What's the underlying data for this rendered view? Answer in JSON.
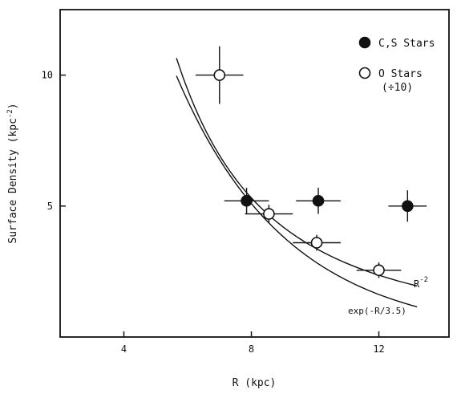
{
  "chart_data": {
    "type": "scatter",
    "xlabel": "R (kpc)",
    "ylabel": "Surface Density (kpc",
    "ylabel_sup": "-2",
    "ylabel_close": ")",
    "xlim": [
      2,
      14.2
    ],
    "ylim": [
      0,
      12.5
    ],
    "xticks": [
      4,
      8,
      12
    ],
    "yticks": [
      5,
      10
    ],
    "grid": false,
    "legend_position": "top-right",
    "series": [
      {
        "name": "C,S Stars",
        "marker": "filled-circle",
        "points": [
          {
            "x": 7.85,
            "y": 5.2,
            "xerr": 0.7,
            "yerr": 0.5
          },
          {
            "x": 10.1,
            "y": 5.2,
            "xerr": 0.7,
            "yerr": 0.5
          },
          {
            "x": 12.9,
            "y": 5.0,
            "xerr": 0.6,
            "yerr": 0.6
          }
        ]
      },
      {
        "name": "O Stars",
        "name_line2": "(÷10)",
        "marker": "open-circle",
        "points": [
          {
            "x": 7.0,
            "y": 10.0,
            "xerr": 0.75,
            "yerr": 1.1
          },
          {
            "x": 8.55,
            "y": 4.7,
            "xerr": 0.75,
            "yerr": 0.35
          },
          {
            "x": 10.05,
            "y": 3.6,
            "xerr": 0.75,
            "yerr": 0.3
          },
          {
            "x": 12.0,
            "y": 2.55,
            "xerr": 0.7,
            "yerr": 0.3
          }
        ]
      }
    ],
    "curves": [
      {
        "label": "R",
        "label_sup": "-2",
        "form": "power",
        "coef": 340,
        "x_range": [
          5.65,
          13.2
        ]
      },
      {
        "label": "exp(-R/3.5)",
        "form": "exp",
        "coef": 50.1,
        "scale": 3.5,
        "x_range": [
          5.65,
          13.2
        ]
      }
    ]
  }
}
